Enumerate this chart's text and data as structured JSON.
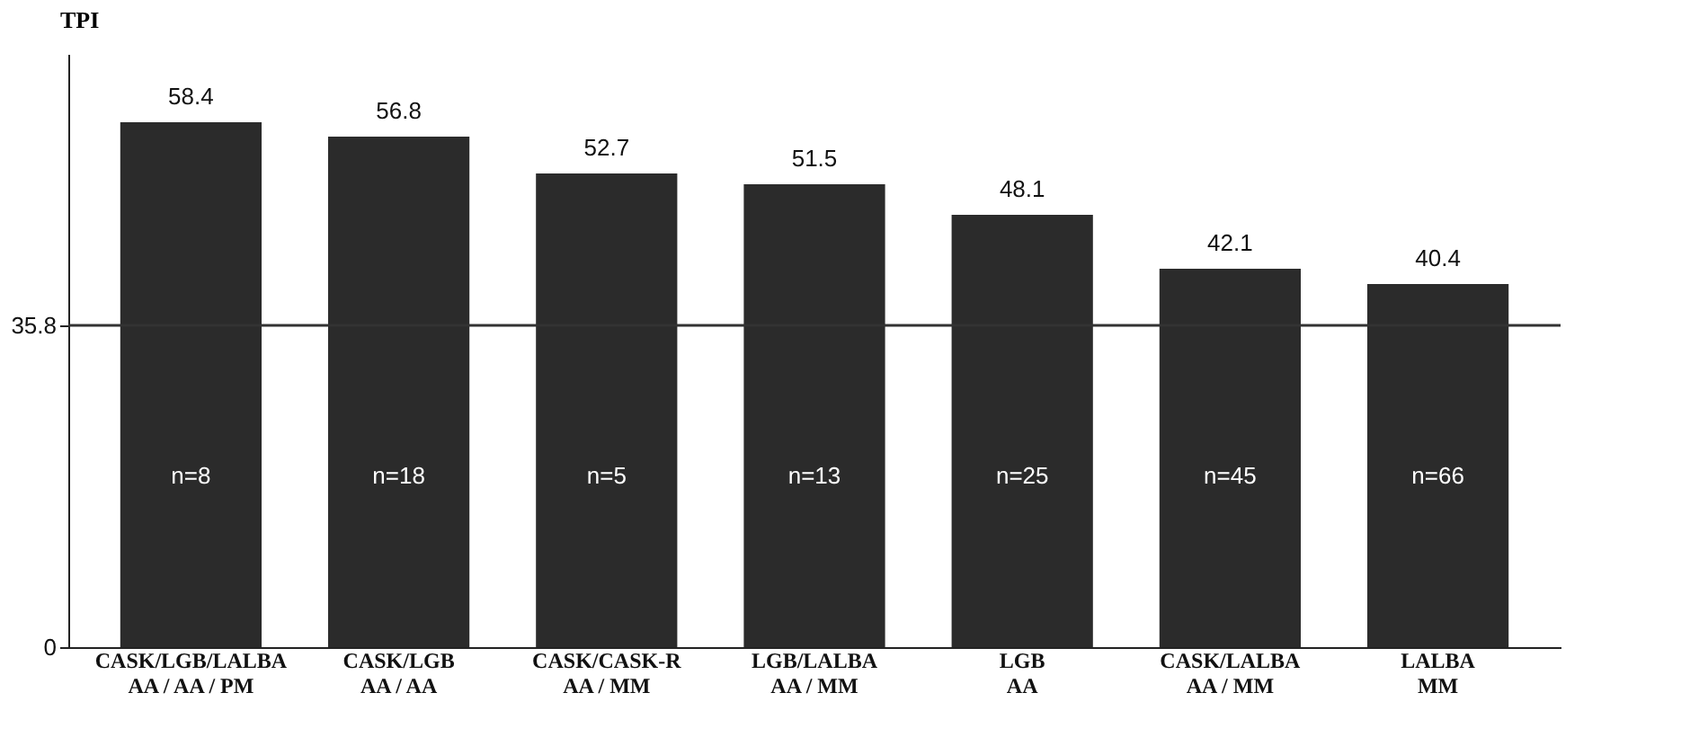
{
  "chart_data": {
    "type": "bar",
    "ylabel": "TPI",
    "categories": [
      "CASK/LGB/LALBA\nAA / AA / PM",
      "CASK/LGB\nAA / AA",
      "CASK/CASK-R\nAA / MM",
      "LGB/LALBA\nAA / MM",
      "LGB\nAA",
      "CASK/LALBA\nAA / MM",
      "LALBA\nMM"
    ],
    "values": [
      58.4,
      56.8,
      52.7,
      51.5,
      48.1,
      42.1,
      40.4
    ],
    "color": "#2b2b2b",
    "data_labels": true,
    "ylim": [
      0,
      66
    ],
    "yticks": [
      0,
      35.8
    ],
    "ref_lines": [
      {
        "axis": "y",
        "value": 35.8,
        "color": "#333333"
      }
    ],
    "annotations": [
      "n=8",
      "n=18",
      "n=5",
      "n=13",
      "n=25",
      "n=45",
      "n=66"
    ],
    "grid": false
  }
}
